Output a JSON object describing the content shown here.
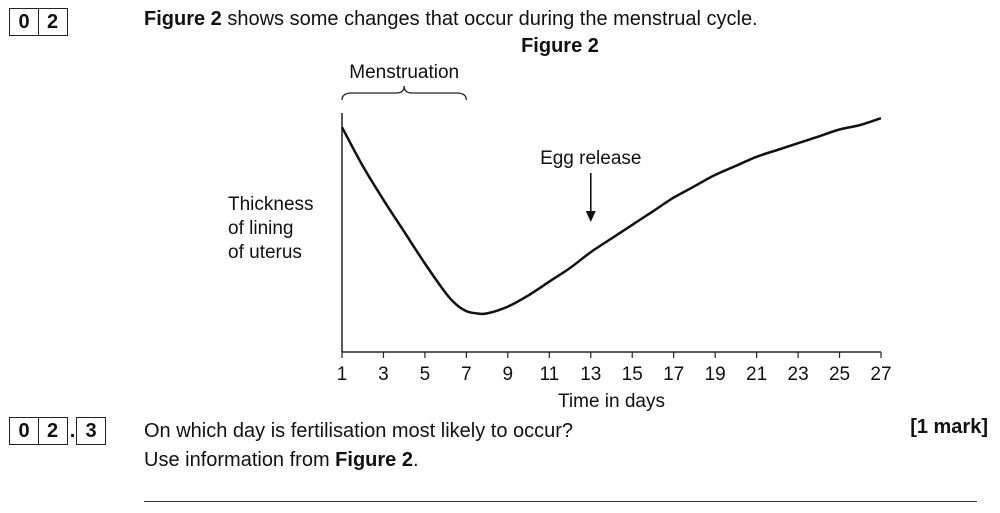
{
  "question": {
    "number_digits": [
      "0",
      "2"
    ],
    "intro_bold": "Figure 2",
    "intro_rest": " shows some changes that occur during the menstrual cycle."
  },
  "figure_title": "Figure 2",
  "chart_data": {
    "type": "line",
    "title": "Figure 2",
    "xlabel": "Time in days",
    "ylabel": "Thickness of lining of uterus",
    "ylabel_lines": [
      "Thickness",
      "of lining",
      "of uterus"
    ],
    "xlim": [
      1,
      27
    ],
    "ylim": [
      0,
      1
    ],
    "x_ticks": [
      1,
      3,
      5,
      7,
      9,
      11,
      13,
      15,
      17,
      19,
      21,
      23,
      25,
      27
    ],
    "y_ticks": [],
    "grid": false,
    "series": [
      {
        "x": [
          1,
          2,
          3,
          4,
          5,
          6,
          6.5,
          7,
          7.5,
          8,
          9,
          10,
          11,
          12,
          13,
          14,
          15,
          16,
          17,
          18,
          19,
          20,
          21,
          22,
          23,
          24,
          25,
          26,
          27
        ],
        "y": [
          0.99,
          0.82,
          0.67,
          0.53,
          0.39,
          0.26,
          0.21,
          0.18,
          0.17,
          0.17,
          0.2,
          0.25,
          0.31,
          0.37,
          0.44,
          0.5,
          0.56,
          0.62,
          0.68,
          0.73,
          0.78,
          0.82,
          0.86,
          0.89,
          0.92,
          0.95,
          0.98,
          1.0,
          1.03
        ]
      }
    ],
    "annotations": [
      {
        "text": "Menstruation",
        "type": "brace",
        "x_start": 1,
        "x_end": 7
      },
      {
        "text": "Egg release",
        "type": "arrow",
        "x": 13
      }
    ]
  },
  "subquestion": {
    "digits": [
      "0",
      "2",
      "3"
    ],
    "line1": "On which day is fertilisation most likely to occur?",
    "line2_plain": "Use information from ",
    "line2_bold": "Figure 2",
    "line2_end": ".",
    "mark": "[1 mark]"
  }
}
